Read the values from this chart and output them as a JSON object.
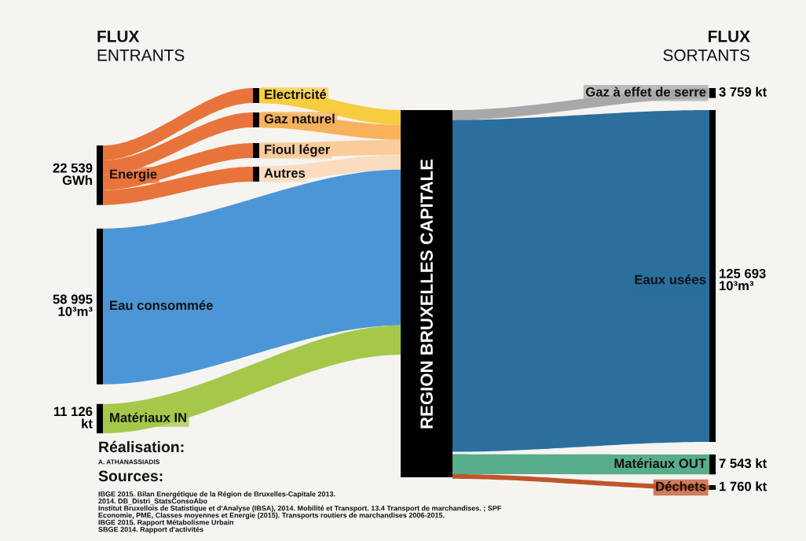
{
  "chart_data": {
    "type": "other",
    "categories": [
      "Energie",
      "Eau consommée",
      "Matériaux IN",
      "Electricité",
      "Gaz naturel",
      "Fioul léger",
      "Autres",
      "Gaz à effet de serre",
      "Eaux usées",
      "Matériaux OUT",
      "Déchets"
    ],
    "values": [
      22539,
      58995,
      11126,
      null,
      null,
      null,
      null,
      3759,
      125693,
      7543,
      1760
    ],
    "value_labels": [
      "22 539\nGWh",
      "58 995\n10³m³",
      "11 126\nkt",
      null,
      null,
      null,
      null,
      "3 759 kt",
      "125 693\n10³m³",
      "7 543 kt",
      "1 760 kt"
    ],
    "colors": [
      "#e8743b",
      "#4b96d6",
      "#a5c84a",
      "#f5cd3f",
      "#f7b25a",
      "#f9cc9a",
      "#fbdcc0",
      "#a8a8a8",
      "#2a6f9e",
      "#58ad8a",
      "#c0542a"
    ],
    "annotations": [
      "FLUX",
      "ENTRANTS",
      "FLUX",
      "SORTANTS",
      "REGION BRUXELLES CAPITALE",
      "Réalisation:",
      "A. ATHANASSIADIS",
      "Sources:",
      "IBGE 2015. Bilan Energétique de la Région de Bruxelles-Capitale 2013.",
      "2014. DB_Distri_StatsConsoAbo",
      "Institut Bruxellois de Statistique et d'Analyse (IBSA), 2014. Mobilité et Transport. 13.4 Transport de marchandises. ; SPF",
      "Economie, PME, Classes moyennes et Energie (2015). Transports routiers de marchandises 2006-2015.",
      "IBGE 2015. Rapport Métabolisme Urbain",
      "SBGE 2014. Rapport d'activités"
    ]
  }
}
